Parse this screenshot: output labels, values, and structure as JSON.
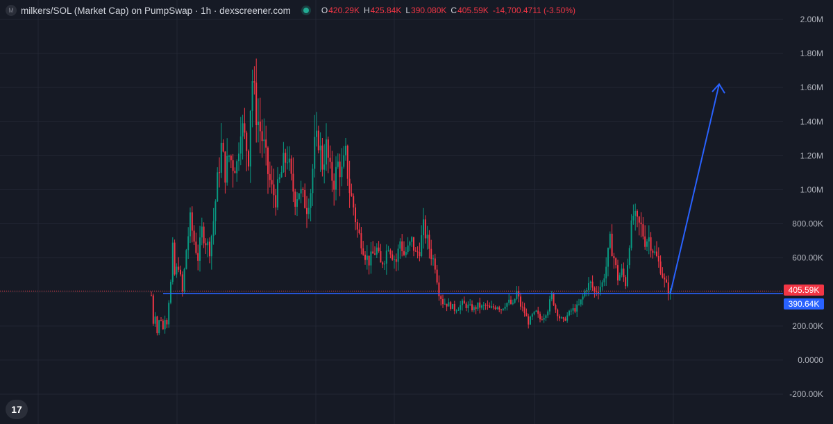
{
  "header": {
    "logo_letter": "M",
    "title": "milkers/SOL (Market Cap) on PumpSwap · 1h · dexscreener.com",
    "ohlc": {
      "open_key": "O",
      "open": "420.29K",
      "high_key": "H",
      "high": "425.84K",
      "low_key": "L",
      "low": "390.080K",
      "close_key": "C",
      "close": "405.59K",
      "change": "-14,700.4711 (-3.50%)"
    }
  },
  "price_tags": {
    "current": "405.59K",
    "support": "390.64K"
  },
  "colors": {
    "background": "#161a25",
    "up": "#089981",
    "down": "#f23645",
    "grid": "#232734",
    "support_line": "#2962ff"
  },
  "tv_logo_text": "17",
  "chart_data": {
    "type": "candlestick",
    "y_axis": {
      "min": -200000,
      "max": 2000000,
      "tick_labels": [
        "2.00M",
        "1.80M",
        "1.60M",
        "1.40M",
        "1.20M",
        "1.00M",
        "800.00K",
        "600.00K",
        "400.00K",
        "200.00K",
        "0.0000",
        "-200.00K"
      ],
      "tick_values": [
        2000000,
        1800000,
        1600000,
        1400000,
        1200000,
        1000000,
        800000,
        600000,
        400000,
        200000,
        0,
        -200000
      ]
    },
    "current_price": 405590,
    "support_level": 390640,
    "grid": true,
    "close_path": [
      [
        0,
        380000
      ],
      [
        1,
        220000
      ],
      [
        2,
        270000
      ],
      [
        3,
        160000
      ],
      [
        4,
        230000
      ],
      [
        5,
        240000
      ],
      [
        6,
        180000
      ],
      [
        7,
        250000
      ],
      [
        8,
        220000
      ],
      [
        9,
        350000
      ],
      [
        10,
        450000
      ],
      [
        11,
        650000
      ],
      [
        12,
        500000
      ],
      [
        14,
        560000
      ],
      [
        16,
        400000
      ],
      [
        18,
        650000
      ],
      [
        20,
        820000
      ],
      [
        22,
        700000
      ],
      [
        24,
        600000
      ],
      [
        26,
        760000
      ],
      [
        28,
        700000
      ],
      [
        30,
        650000
      ],
      [
        32,
        820000
      ],
      [
        34,
        1050000
      ],
      [
        36,
        1250000
      ],
      [
        38,
        1100000
      ],
      [
        40,
        1200000
      ],
      [
        42,
        1150000
      ],
      [
        44,
        1150000
      ],
      [
        46,
        1400000
      ],
      [
        48,
        1300000
      ],
      [
        50,
        1200000
      ],
      [
        51,
        1500000
      ],
      [
        52,
        1650000
      ],
      [
        54,
        1450000
      ],
      [
        56,
        1350000
      ],
      [
        58,
        1250000
      ],
      [
        60,
        1100000
      ],
      [
        62,
        1000000
      ],
      [
        64,
        950000
      ],
      [
        66,
        1050000
      ],
      [
        68,
        1150000
      ],
      [
        70,
        1200000
      ],
      [
        72,
        1050000
      ],
      [
        74,
        950000
      ],
      [
        76,
        1000000
      ],
      [
        78,
        950000
      ],
      [
        80,
        900000
      ],
      [
        82,
        1000000
      ],
      [
        84,
        1250000
      ],
      [
        86,
        1300000
      ],
      [
        88,
        1150000
      ],
      [
        90,
        1250000
      ],
      [
        92,
        1100000
      ],
      [
        94,
        1050000
      ],
      [
        96,
        1150000
      ],
      [
        98,
        1100000
      ],
      [
        100,
        1200000
      ],
      [
        102,
        1000000
      ],
      [
        104,
        900000
      ],
      [
        106,
        760000
      ],
      [
        108,
        700000
      ],
      [
        110,
        620000
      ],
      [
        112,
        580000
      ],
      [
        114,
        620000
      ],
      [
        116,
        650000
      ],
      [
        118,
        560000
      ],
      [
        120,
        600000
      ],
      [
        122,
        680000
      ],
      [
        124,
        620000
      ],
      [
        126,
        580000
      ],
      [
        128,
        700000
      ],
      [
        130,
        620000
      ],
      [
        132,
        650000
      ],
      [
        134,
        700000
      ],
      [
        136,
        620000
      ],
      [
        138,
        650000
      ],
      [
        140,
        780000
      ],
      [
        142,
        700000
      ],
      [
        144,
        620000
      ],
      [
        146,
        560000
      ],
      [
        148,
        400000
      ],
      [
        150,
        340000
      ],
      [
        152,
        330000
      ],
      [
        154,
        320000
      ],
      [
        156,
        300000
      ],
      [
        158,
        310000
      ],
      [
        160,
        330000
      ],
      [
        162,
        320000
      ],
      [
        164,
        310000
      ],
      [
        166,
        300000
      ],
      [
        168,
        320000
      ],
      [
        170,
        310000
      ],
      [
        172,
        320000
      ],
      [
        174,
        300000
      ],
      [
        176,
        310000
      ],
      [
        178,
        320000
      ],
      [
        180,
        300000
      ],
      [
        182,
        330000
      ],
      [
        184,
        340000
      ],
      [
        186,
        320000
      ],
      [
        188,
        400000
      ],
      [
        190,
        320000
      ],
      [
        192,
        280000
      ],
      [
        194,
        220000
      ],
      [
        196,
        260000
      ],
      [
        198,
        280000
      ],
      [
        200,
        240000
      ],
      [
        202,
        260000
      ],
      [
        204,
        300000
      ],
      [
        206,
        380000
      ],
      [
        208,
        300000
      ],
      [
        210,
        250000
      ],
      [
        212,
        230000
      ],
      [
        214,
        260000
      ],
      [
        216,
        290000
      ],
      [
        218,
        300000
      ],
      [
        220,
        320000
      ],
      [
        222,
        370000
      ],
      [
        224,
        430000
      ],
      [
        226,
        450000
      ],
      [
        228,
        400000
      ],
      [
        230,
        420000
      ],
      [
        232,
        450000
      ],
      [
        234,
        550000
      ],
      [
        236,
        700000
      ],
      [
        238,
        600000
      ],
      [
        240,
        480000
      ],
      [
        242,
        520000
      ],
      [
        244,
        450000
      ],
      [
        246,
        700000
      ],
      [
        248,
        850000
      ],
      [
        250,
        800000
      ],
      [
        252,
        780000
      ],
      [
        254,
        700000
      ],
      [
        256,
        720000
      ],
      [
        258,
        650000
      ],
      [
        260,
        600000
      ],
      [
        262,
        540000
      ],
      [
        264,
        460000
      ],
      [
        266,
        410000
      ],
      [
        267,
        405590
      ]
    ]
  }
}
